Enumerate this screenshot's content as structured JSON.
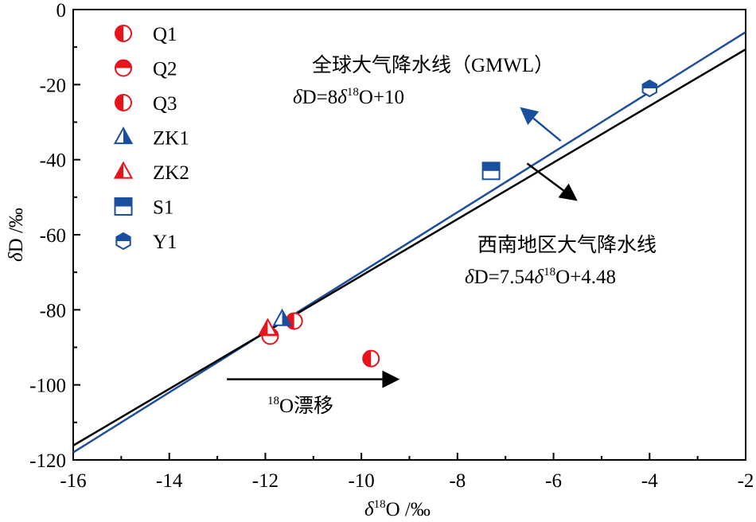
{
  "chart_data": {
    "type": "scatter",
    "xlim": [
      -16,
      -2
    ],
    "ylim": [
      -120,
      0
    ],
    "x_ticks": [
      -16,
      -14,
      -12,
      -10,
      -8,
      -6,
      -4,
      -2
    ],
    "y_ticks": [
      0,
      -20,
      -40,
      -60,
      -80,
      -100,
      -120
    ],
    "x_tick_labels": [
      "-16",
      "-14",
      "-12",
      "-10",
      "-8",
      "-6",
      "-4",
      "-2"
    ],
    "y_tick_labels": [
      "0",
      "-20",
      "-40",
      "-60",
      "-80",
      "-100",
      "-120"
    ],
    "xlabel": "δ18O /‰",
    "ylabel": "δD /‰",
    "xlabel_parts": [
      "δ",
      "18",
      "O /‰"
    ],
    "ylabel_parts": [
      "δ",
      "D /‰"
    ],
    "grid": false,
    "legend_position": "top-left",
    "series": [
      {
        "name": "Q1",
        "marker": "circle-half-left",
        "color": "#e8141c",
        "points": [
          {
            "x": -9.8,
            "y": -93
          }
        ]
      },
      {
        "name": "Q2",
        "marker": "circle-half-top",
        "color": "#e8141c",
        "points": [
          {
            "x": -11.9,
            "y": -87
          }
        ]
      },
      {
        "name": "Q3",
        "marker": "circle-half-left",
        "color": "#e8141c",
        "points": [
          {
            "x": -11.4,
            "y": -83
          }
        ]
      },
      {
        "name": "ZK1",
        "marker": "triangle-half-right",
        "color": "#1a4fa0",
        "points": [
          {
            "x": -11.65,
            "y": -82.5
          }
        ]
      },
      {
        "name": "ZK2",
        "marker": "triangle-half-left",
        "color": "#e8141c",
        "points": [
          {
            "x": -11.95,
            "y": -85
          }
        ]
      },
      {
        "name": "S1",
        "marker": "square-half-top",
        "color": "#1a4fa0",
        "points": [
          {
            "x": -7.3,
            "y": -43
          }
        ]
      },
      {
        "name": "Y1",
        "marker": "hexagon-half-top",
        "color": "#1a4fa0",
        "points": [
          {
            "x": -4,
            "y": -21
          }
        ]
      }
    ],
    "lines": [
      {
        "label": "全球大气降水线（GMWL）",
        "equation_parts": [
          "δ",
          "D=8",
          "δ",
          "18",
          "O+10"
        ],
        "slope": 8,
        "intercept": 10,
        "color": "#1a4fa0"
      },
      {
        "label": "西南地区大气降水线",
        "equation_parts": [
          "δ",
          "D=7.54",
          "δ",
          "18",
          "O+4.48"
        ],
        "slope": 7.54,
        "intercept": 4.48,
        "color": "#000000"
      }
    ],
    "annotations": [
      {
        "label": "18O漂移",
        "parts": [
          "18",
          "O漂移"
        ],
        "arrow_from": [
          -12.8,
          -98.5
        ],
        "arrow_to": [
          -9.2,
          -98.5
        ],
        "color": "#000000"
      }
    ],
    "drift_arrows": [
      {
        "from": [
          -5.85,
          -35
        ],
        "to": [
          -6.7,
          -26
        ],
        "color": "#1a4fa0"
      },
      {
        "from": [
          -6.55,
          -41
        ],
        "to": [
          -5.5,
          -51
        ],
        "color": "#000000"
      }
    ]
  }
}
